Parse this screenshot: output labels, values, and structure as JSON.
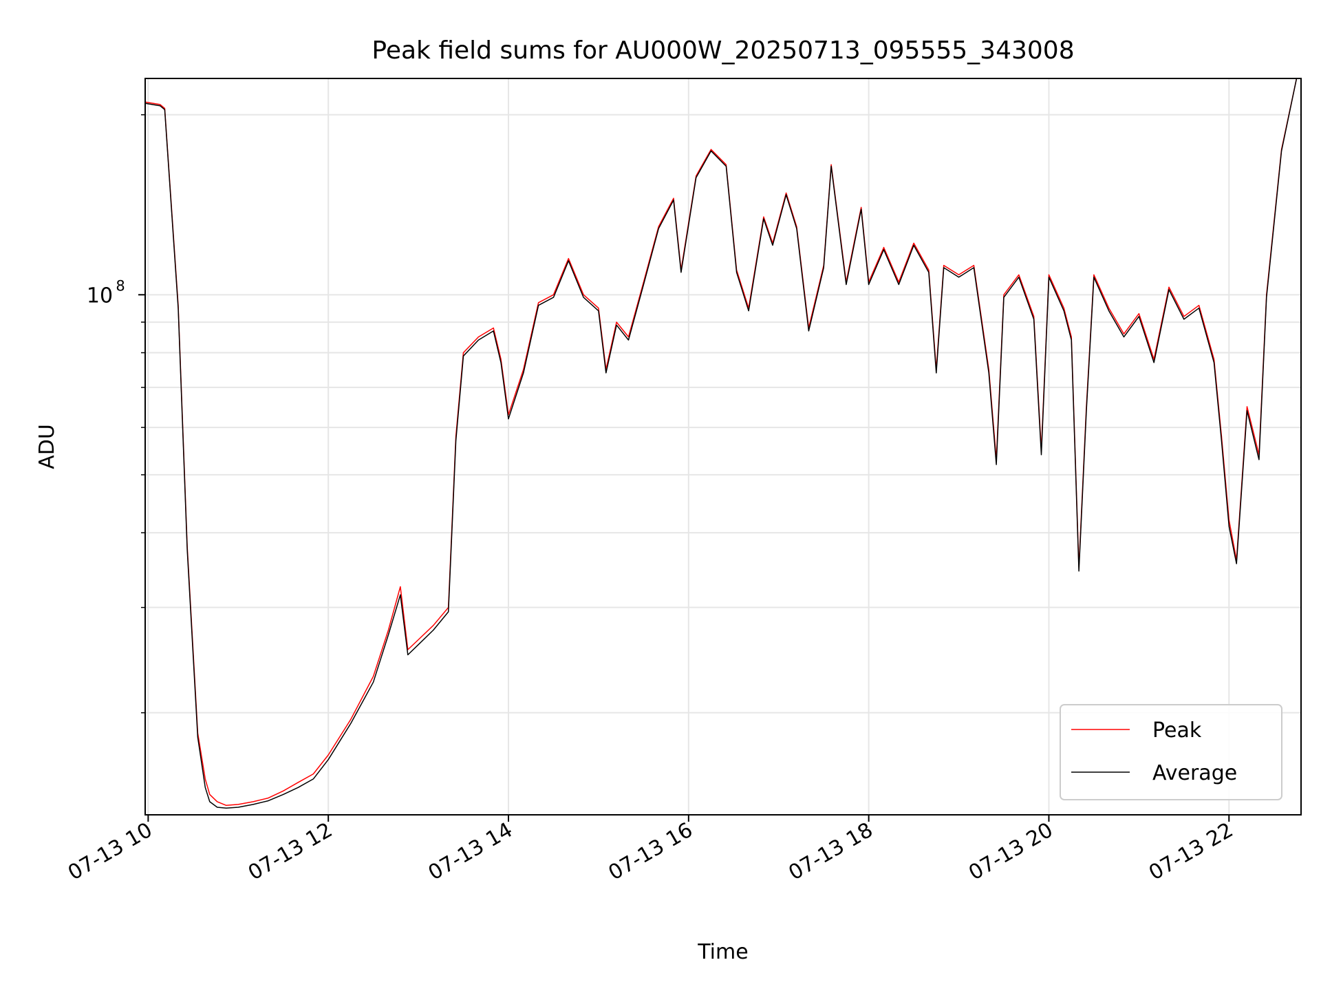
{
  "chart_data": {
    "type": "line",
    "title": "Peak field sums for AU000W_20250713_095555_343008",
    "xlabel": "Time",
    "ylabel": "ADU",
    "y_scale": "log",
    "ylim": [
      13500000,
      230000000
    ],
    "y_major_ticks": [
      {
        "value": 100000000,
        "base": "10",
        "exp": "8"
      }
    ],
    "y_minor_ticks": [
      20000000,
      30000000,
      40000000,
      50000000,
      60000000,
      70000000,
      80000000,
      90000000,
      200000000
    ],
    "xlim": [
      "2025-07-13 09:58",
      "2025-07-13 22:48"
    ],
    "x_ticks": [
      {
        "value": "2025-07-13 10:00",
        "label": "07-13 10"
      },
      {
        "value": "2025-07-13 12:00",
        "label": "07-13 12"
      },
      {
        "value": "2025-07-13 14:00",
        "label": "07-13 14"
      },
      {
        "value": "2025-07-13 16:00",
        "label": "07-13 16"
      },
      {
        "value": "2025-07-13 18:00",
        "label": "07-13 18"
      },
      {
        "value": "2025-07-13 20:00",
        "label": "07-13 20"
      },
      {
        "value": "2025-07-13 22:00",
        "label": "07-13 22"
      }
    ],
    "grid": true,
    "legend_position": "lower-right",
    "series": [
      {
        "name": "Peak",
        "color": "#ff0000",
        "x": [
          "2025-07-13 09:58",
          "2025-07-13 10:08",
          "2025-07-13 10:11",
          "2025-07-13 10:20",
          "2025-07-13 10:26",
          "2025-07-13 10:33",
          "2025-07-13 10:38",
          "2025-07-13 10:41",
          "2025-07-13 10:46",
          "2025-07-13 10:52",
          "2025-07-13 11:00",
          "2025-07-13 11:10",
          "2025-07-13 11:20",
          "2025-07-13 11:30",
          "2025-07-13 11:40",
          "2025-07-13 11:50",
          "2025-07-13 12:00",
          "2025-07-13 12:15",
          "2025-07-13 12:30",
          "2025-07-13 12:40",
          "2025-07-13 12:48",
          "2025-07-13 12:53",
          "2025-07-13 13:00",
          "2025-07-13 13:10",
          "2025-07-13 13:20",
          "2025-07-13 13:25",
          "2025-07-13 13:30",
          "2025-07-13 13:40",
          "2025-07-13 13:50",
          "2025-07-13 13:55",
          "2025-07-13 14:00",
          "2025-07-13 14:10",
          "2025-07-13 14:20",
          "2025-07-13 14:30",
          "2025-07-13 14:40",
          "2025-07-13 14:50",
          "2025-07-13 15:00",
          "2025-07-13 15:05",
          "2025-07-13 15:12",
          "2025-07-13 15:20",
          "2025-07-13 15:30",
          "2025-07-13 15:40",
          "2025-07-13 15:50",
          "2025-07-13 15:55",
          "2025-07-13 16:05",
          "2025-07-13 16:15",
          "2025-07-13 16:25",
          "2025-07-13 16:32",
          "2025-07-13 16:40",
          "2025-07-13 16:50",
          "2025-07-13 16:56",
          "2025-07-13 17:05",
          "2025-07-13 17:12",
          "2025-07-13 17:20",
          "2025-07-13 17:30",
          "2025-07-13 17:35",
          "2025-07-13 17:45",
          "2025-07-13 17:55",
          "2025-07-13 18:00",
          "2025-07-13 18:10",
          "2025-07-13 18:20",
          "2025-07-13 18:30",
          "2025-07-13 18:40",
          "2025-07-13 18:45",
          "2025-07-13 18:50",
          "2025-07-13 19:00",
          "2025-07-13 19:10",
          "2025-07-13 19:20",
          "2025-07-13 19:25",
          "2025-07-13 19:30",
          "2025-07-13 19:40",
          "2025-07-13 19:50",
          "2025-07-13 19:55",
          "2025-07-13 20:00",
          "2025-07-13 20:10",
          "2025-07-13 20:15",
          "2025-07-13 20:20",
          "2025-07-13 20:25",
          "2025-07-13 20:30",
          "2025-07-13 20:40",
          "2025-07-13 20:50",
          "2025-07-13 21:00",
          "2025-07-13 21:10",
          "2025-07-13 21:20",
          "2025-07-13 21:30",
          "2025-07-13 21:40",
          "2025-07-13 21:50",
          "2025-07-13 21:55",
          "2025-07-13 22:00",
          "2025-07-13 22:05",
          "2025-07-13 22:12",
          "2025-07-13 22:20",
          "2025-07-13 22:25",
          "2025-07-13 22:35",
          "2025-07-13 22:45"
        ],
        "y": [
          210000000,
          208000000,
          205000000,
          96000000,
          38000000,
          18500000,
          15500000,
          14600000,
          14200000,
          14000000,
          14050000,
          14200000,
          14400000,
          14800000,
          15300000,
          15800000,
          17000000,
          19500000,
          23000000,
          27500000,
          32500000,
          25500000,
          26500000,
          28000000,
          30000000,
          58000000,
          80000000,
          85000000,
          88000000,
          78000000,
          63000000,
          75000000,
          97000000,
          100000000,
          115000000,
          100000000,
          95000000,
          75000000,
          90000000,
          85000000,
          105000000,
          130000000,
          145000000,
          110000000,
          158000000,
          175000000,
          165000000,
          110000000,
          95000000,
          135000000,
          122000000,
          148000000,
          130000000,
          88000000,
          112000000,
          165000000,
          105000000,
          140000000,
          105000000,
          120000000,
          105000000,
          122000000,
          110000000,
          75000000,
          112000000,
          108000000,
          112000000,
          75000000,
          53000000,
          100000000,
          108000000,
          92000000,
          55000000,
          108000000,
          95000000,
          85000000,
          35000000,
          65000000,
          108000000,
          95000000,
          86000000,
          93000000,
          78000000,
          103000000,
          92000000,
          96000000,
          78000000,
          58000000,
          42000000,
          36000000,
          65000000,
          54000000,
          100000000,
          175000000,
          230000000
        ]
      },
      {
        "name": "Average",
        "color": "#000000",
        "x": [
          "2025-07-13 09:58",
          "2025-07-13 10:08",
          "2025-07-13 10:11",
          "2025-07-13 10:20",
          "2025-07-13 10:26",
          "2025-07-13 10:33",
          "2025-07-13 10:38",
          "2025-07-13 10:41",
          "2025-07-13 10:46",
          "2025-07-13 10:52",
          "2025-07-13 11:00",
          "2025-07-13 11:10",
          "2025-07-13 11:20",
          "2025-07-13 11:30",
          "2025-07-13 11:40",
          "2025-07-13 11:50",
          "2025-07-13 12:00",
          "2025-07-13 12:15",
          "2025-07-13 12:30",
          "2025-07-13 12:40",
          "2025-07-13 12:48",
          "2025-07-13 12:53",
          "2025-07-13 13:00",
          "2025-07-13 13:10",
          "2025-07-13 13:20",
          "2025-07-13 13:25",
          "2025-07-13 13:30",
          "2025-07-13 13:40",
          "2025-07-13 13:50",
          "2025-07-13 13:55",
          "2025-07-13 14:00",
          "2025-07-13 14:10",
          "2025-07-13 14:20",
          "2025-07-13 14:30",
          "2025-07-13 14:40",
          "2025-07-13 14:50",
          "2025-07-13 15:00",
          "2025-07-13 15:05",
          "2025-07-13 15:12",
          "2025-07-13 15:20",
          "2025-07-13 15:30",
          "2025-07-13 15:40",
          "2025-07-13 15:50",
          "2025-07-13 15:55",
          "2025-07-13 16:05",
          "2025-07-13 16:15",
          "2025-07-13 16:25",
          "2025-07-13 16:32",
          "2025-07-13 16:40",
          "2025-07-13 16:50",
          "2025-07-13 16:56",
          "2025-07-13 17:05",
          "2025-07-13 17:12",
          "2025-07-13 17:20",
          "2025-07-13 17:30",
          "2025-07-13 17:35",
          "2025-07-13 17:45",
          "2025-07-13 17:55",
          "2025-07-13 18:00",
          "2025-07-13 18:10",
          "2025-07-13 18:20",
          "2025-07-13 18:30",
          "2025-07-13 18:40",
          "2025-07-13 18:45",
          "2025-07-13 18:50",
          "2025-07-13 19:00",
          "2025-07-13 19:10",
          "2025-07-13 19:20",
          "2025-07-13 19:25",
          "2025-07-13 19:30",
          "2025-07-13 19:40",
          "2025-07-13 19:50",
          "2025-07-13 19:55",
          "2025-07-13 20:00",
          "2025-07-13 20:10",
          "2025-07-13 20:15",
          "2025-07-13 20:20",
          "2025-07-13 20:25",
          "2025-07-13 20:30",
          "2025-07-13 20:40",
          "2025-07-13 20:50",
          "2025-07-13 21:00",
          "2025-07-13 21:10",
          "2025-07-13 21:20",
          "2025-07-13 21:30",
          "2025-07-13 21:40",
          "2025-07-13 21:50",
          "2025-07-13 21:55",
          "2025-07-13 22:00",
          "2025-07-13 22:05",
          "2025-07-13 22:12",
          "2025-07-13 22:20",
          "2025-07-13 22:25",
          "2025-07-13 22:35",
          "2025-07-13 22:45"
        ],
        "y": [
          209000000,
          207000000,
          204000000,
          95000000,
          37500000,
          18200000,
          15000000,
          14200000,
          13900000,
          13850000,
          13900000,
          14050000,
          14250000,
          14600000,
          15000000,
          15500000,
          16700000,
          19200000,
          22500000,
          27000000,
          31500000,
          25000000,
          26000000,
          27500000,
          29500000,
          57000000,
          79000000,
          84000000,
          87000000,
          77000000,
          62000000,
          74000000,
          96000000,
          99000000,
          114000000,
          99000000,
          94000000,
          74000000,
          89000000,
          84000000,
          104000000,
          129000000,
          144000000,
          109000000,
          157000000,
          174000000,
          164000000,
          109000000,
          94000000,
          134000000,
          121000000,
          147000000,
          129000000,
          87000000,
          111000000,
          164000000,
          104000000,
          139000000,
          104000000,
          119000000,
          104000000,
          121000000,
          109000000,
          74000000,
          111000000,
          107000000,
          111000000,
          74000000,
          52000000,
          99000000,
          107000000,
          91000000,
          54000000,
          107000000,
          94000000,
          84000000,
          34500000,
          64000000,
          107000000,
          94000000,
          85000000,
          92000000,
          77000000,
          102000000,
          91000000,
          95000000,
          77000000,
          57000000,
          41000000,
          35500000,
          64000000,
          53000000,
          99000000,
          174000000,
          230000000
        ]
      }
    ]
  }
}
